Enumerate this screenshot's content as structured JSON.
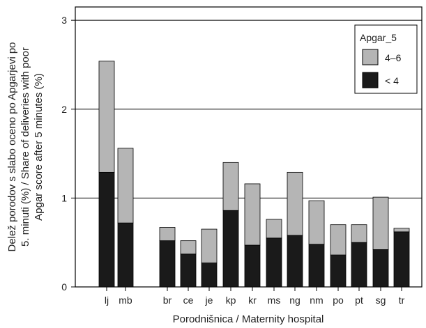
{
  "chart_data": {
    "type": "bar",
    "stacked": true,
    "categories": [
      "lj",
      "mb",
      "br",
      "ce",
      "je",
      "kp",
      "kr",
      "ms",
      "ng",
      "nm",
      "po",
      "pt",
      "sg",
      "tr"
    ],
    "series": [
      {
        "name": "< 4",
        "values": [
          1.29,
          0.72,
          0.52,
          0.37,
          0.27,
          0.86,
          0.47,
          0.55,
          0.58,
          0.48,
          0.36,
          0.5,
          0.42,
          0.62
        ]
      },
      {
        "name": "4–6",
        "values": [
          1.25,
          0.84,
          0.15,
          0.15,
          0.38,
          0.54,
          0.69,
          0.21,
          0.71,
          0.49,
          0.34,
          0.2,
          0.59,
          0.04
        ]
      }
    ],
    "xlabel": "Porodnišnica / Maternity hospital",
    "ylabel_lines": [
      "Delež porodov s slabo oceno po Apgarjevi po",
      "5. minuti (%) / Share of deliveries with poor",
      "Apgar score after 5 minutes (%)"
    ],
    "yticks": [
      "0",
      "1",
      "2",
      "3"
    ],
    "ylim": [
      0,
      3.15
    ],
    "grid": "horizontal",
    "legend": {
      "title": "Apgar_5",
      "position": "top-right",
      "entries": [
        "4–6",
        "< 4"
      ]
    },
    "colors": {
      "< 4": "#1a1a1a",
      "4–6": "#b5b5b5"
    }
  }
}
